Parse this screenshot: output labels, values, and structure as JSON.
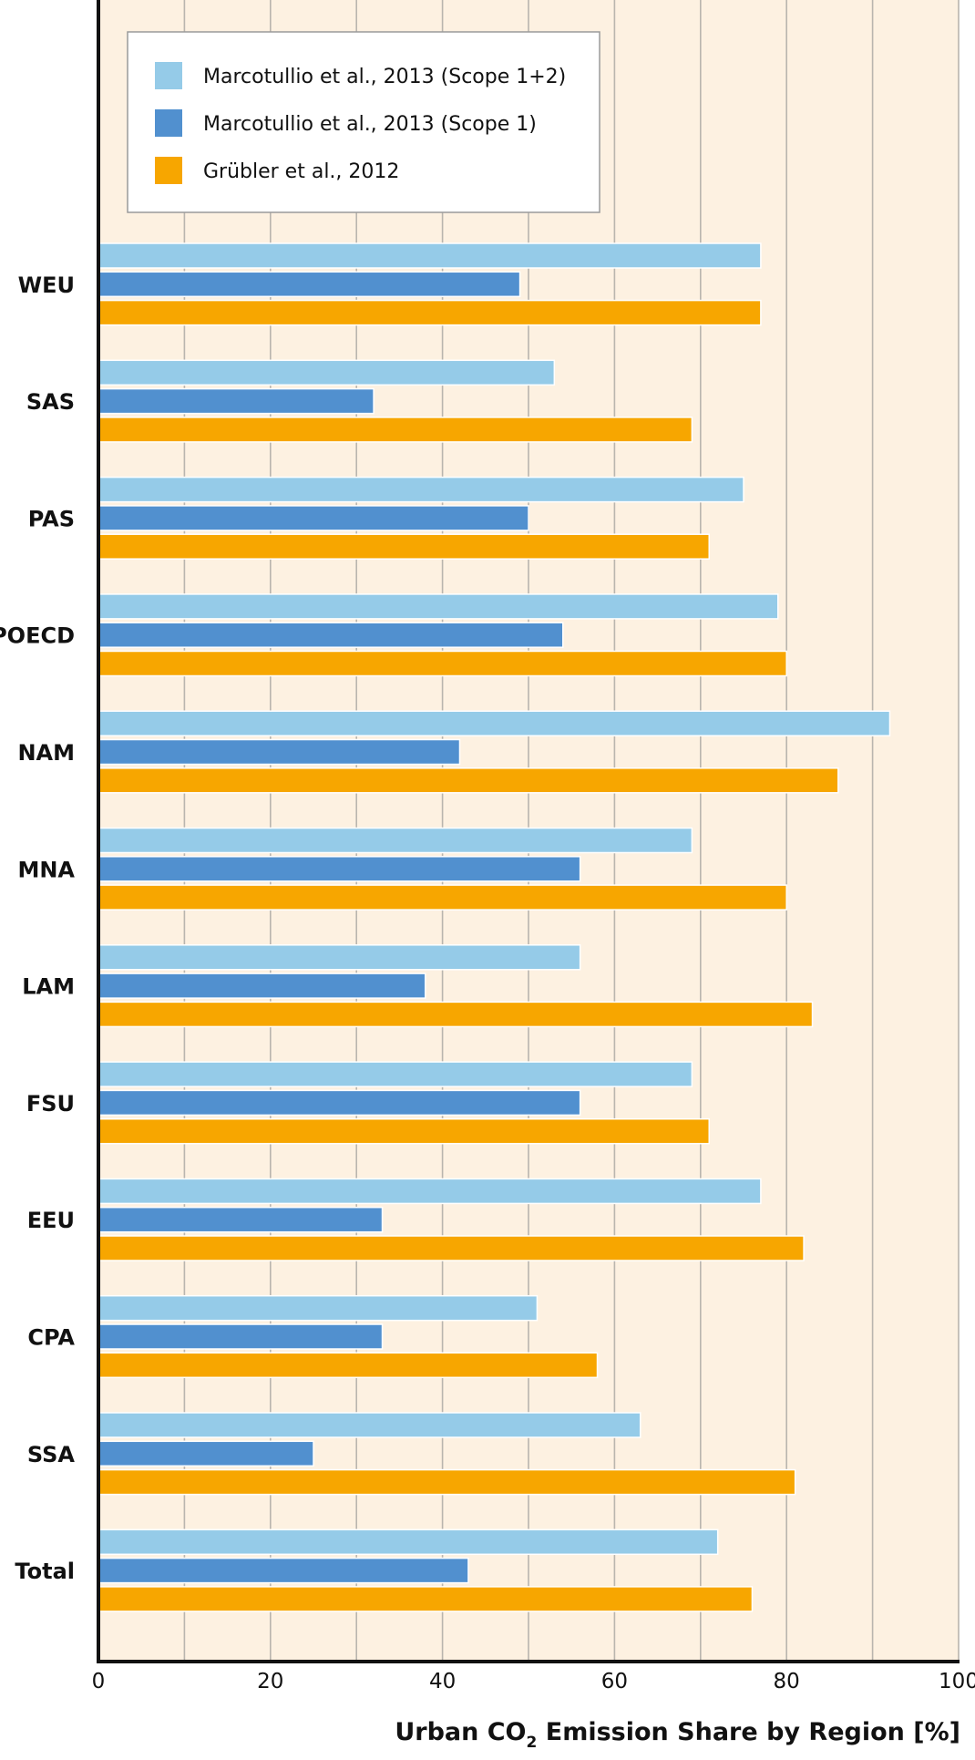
{
  "chart_data": {
    "type": "bar",
    "orientation": "horizontal",
    "categories": [
      "WEU",
      "SAS",
      "PAS",
      "POECD",
      "NAM",
      "MNA",
      "LAM",
      "FSU",
      "EEU",
      "CPA",
      "SSA",
      "Total"
    ],
    "series": [
      {
        "name": "Marcotullio et al., 2013 (Scope 1+2)",
        "color": "#95cbe8",
        "values": [
          77,
          53,
          75,
          79,
          92,
          69,
          56,
          69,
          77,
          51,
          63,
          72
        ]
      },
      {
        "name": "Marcotullio et al., 2013 (Scope 1)",
        "color": "#5190cf",
        "values": [
          49,
          32,
          50,
          54,
          42,
          56,
          38,
          56,
          33,
          33,
          25,
          43
        ]
      },
      {
        "name": "Grübler et al., 2012",
        "color": "#f7a600",
        "values": [
          77,
          69,
          71,
          80,
          86,
          80,
          83,
          71,
          82,
          58,
          81,
          76
        ]
      }
    ],
    "xlim": [
      0,
      100
    ],
    "xticks": [
      0,
      20,
      40,
      60,
      80,
      100
    ],
    "xlabel_parts": {
      "before": "Urban CO",
      "subscript": "2",
      "after": " Emission Share by Region [%]"
    },
    "grid": true,
    "background": "#fdf1e1",
    "legend_position": "top-left"
  }
}
